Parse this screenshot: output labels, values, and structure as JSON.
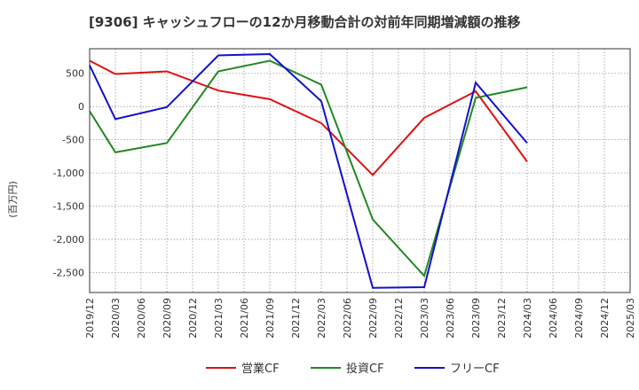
{
  "chart_data": {
    "type": "line",
    "title": "[9306]  キャッシュフローの12か月移動合計の対前年同期増減額の推移",
    "ylabel": "(百万円)",
    "xlabel": "",
    "x_ticks": [
      "2019/12",
      "2020/03",
      "2020/06",
      "2020/09",
      "2020/12",
      "2021/03",
      "2021/06",
      "2021/09",
      "2021/12",
      "2022/03",
      "2022/06",
      "2022/09",
      "2022/12",
      "2023/03",
      "2023/06",
      "2023/09",
      "2023/12",
      "2024/03",
      "2024/06",
      "2024/09",
      "2024/12",
      "2025/03"
    ],
    "y_ticks": [
      500,
      0,
      -500,
      -1000,
      -1500,
      -2000,
      -2500
    ],
    "y_tick_labels": [
      "500",
      "0",
      "-500",
      "-1,000",
      "-1,500",
      "-2,000",
      "-2,500"
    ],
    "ylim": [
      -2800,
      870
    ],
    "grid": true,
    "series": [
      {
        "name": "営業CF",
        "color": "#dd1111",
        "x": [
          "2019/12",
          "2020/03",
          "2020/09",
          "2021/03",
          "2021/09",
          "2022/03",
          "2022/09",
          "2023/03",
          "2023/09",
          "2024/03"
        ],
        "values": [
          690,
          490,
          530,
          240,
          110,
          -250,
          -1030,
          -170,
          230,
          -830
        ]
      },
      {
        "name": "投資CF",
        "color": "#228822",
        "x": [
          "2019/12",
          "2020/03",
          "2020/09",
          "2021/03",
          "2021/09",
          "2022/03",
          "2022/09",
          "2023/03",
          "2023/09",
          "2024/03"
        ],
        "values": [
          -70,
          -690,
          -550,
          530,
          690,
          330,
          -1700,
          -2550,
          130,
          290
        ]
      },
      {
        "name": "フリーCF",
        "color": "#1111cc",
        "x": [
          "2019/12",
          "2020/03",
          "2020/09",
          "2021/03",
          "2021/09",
          "2022/03",
          "2022/09",
          "2023/03",
          "2023/09",
          "2024/03"
        ],
        "values": [
          620,
          -190,
          -10,
          770,
          790,
          80,
          -2730,
          -2720,
          360,
          -550
        ]
      }
    ]
  }
}
